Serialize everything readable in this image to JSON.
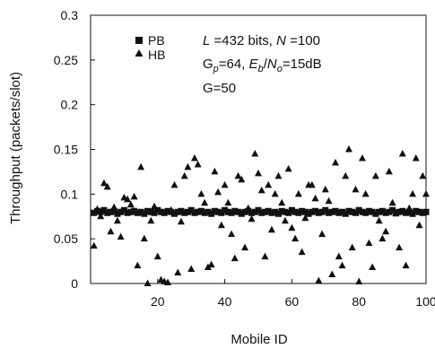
{
  "chart_data": {
    "type": "scatter",
    "xlabel": "Mobile ID",
    "ylabel": "Throughput (packets/slot)",
    "xlim": [
      0,
      100
    ],
    "ylim": [
      0,
      0.3
    ],
    "xticks": [
      "20",
      "40",
      "60",
      "80",
      "100"
    ],
    "yticks": [
      "0",
      "0.05",
      "0.1",
      "0.15",
      "0.2",
      "0.25",
      "0.3"
    ],
    "grid": false,
    "legend_position": "top-left",
    "annotations": {
      "line1": {
        "L": "L",
        "eq1": " =432 bits, ",
        "N": "N",
        "eq2": " =100"
      },
      "line2": {
        "Gp_G": "G",
        "Gp_sub": "p",
        "eq1": "=64, ",
        "E": "E",
        "Eb_sub": "b",
        "slash": "/",
        "N": "N",
        "No_sub": "o",
        "eq2": "=15dB"
      },
      "line3": "G=50"
    },
    "series": [
      {
        "name": "PB",
        "marker": "square",
        "color": "#111111",
        "x": [
          1,
          2,
          3,
          4,
          5,
          6,
          7,
          8,
          9,
          10,
          11,
          12,
          13,
          14,
          15,
          16,
          17,
          18,
          19,
          20,
          21,
          22,
          23,
          24,
          25,
          26,
          27,
          28,
          29,
          30,
          31,
          32,
          33,
          34,
          35,
          36,
          37,
          38,
          39,
          40,
          41,
          42,
          43,
          44,
          45,
          46,
          47,
          48,
          49,
          50,
          51,
          52,
          53,
          54,
          55,
          56,
          57,
          58,
          59,
          60,
          61,
          62,
          63,
          64,
          65,
          66,
          67,
          68,
          69,
          70,
          71,
          72,
          73,
          74,
          75,
          76,
          77,
          78,
          79,
          80,
          81,
          82,
          83,
          84,
          85,
          86,
          87,
          88,
          89,
          90,
          91,
          92,
          93,
          94,
          95,
          96,
          97,
          98,
          99,
          100
        ],
        "y": [
          0.079,
          0.081,
          0.08,
          0.082,
          0.079,
          0.08,
          0.081,
          0.078,
          0.08,
          0.082,
          0.079,
          0.08,
          0.081,
          0.079,
          0.08,
          0.078,
          0.081,
          0.08,
          0.079,
          0.082,
          0.08,
          0.079,
          0.081,
          0.08,
          0.078,
          0.08,
          0.081,
          0.079,
          0.08,
          0.082,
          0.079,
          0.08,
          0.081,
          0.079,
          0.08,
          0.078,
          0.081,
          0.08,
          0.079,
          0.082,
          0.08,
          0.079,
          0.081,
          0.08,
          0.078,
          0.08,
          0.081,
          0.079,
          0.08,
          0.082,
          0.079,
          0.08,
          0.081,
          0.079,
          0.08,
          0.078,
          0.081,
          0.08,
          0.079,
          0.082,
          0.08,
          0.079,
          0.081,
          0.08,
          0.078,
          0.08,
          0.081,
          0.079,
          0.08,
          0.082,
          0.079,
          0.08,
          0.081,
          0.079,
          0.08,
          0.078,
          0.081,
          0.08,
          0.079,
          0.082,
          0.08,
          0.079,
          0.081,
          0.08,
          0.078,
          0.08,
          0.081,
          0.079,
          0.08,
          0.082,
          0.079,
          0.08,
          0.081,
          0.079,
          0.08,
          0.078,
          0.081,
          0.08,
          0.079,
          0.08
        ]
      },
      {
        "name": "HB",
        "marker": "triangle",
        "color": "#111111",
        "x": [
          1,
          2,
          3,
          4,
          5,
          6,
          7,
          8,
          9,
          10,
          11,
          12,
          13,
          14,
          15,
          16,
          17,
          18,
          19,
          20,
          21,
          22,
          23,
          24,
          25,
          26,
          27,
          28,
          29,
          30,
          31,
          32,
          33,
          34,
          35,
          36,
          37,
          38,
          39,
          40,
          41,
          42,
          43,
          44,
          45,
          46,
          47,
          48,
          49,
          50,
          51,
          52,
          53,
          54,
          55,
          56,
          57,
          58,
          59,
          60,
          61,
          62,
          63,
          64,
          65,
          66,
          67,
          68,
          69,
          70,
          71,
          72,
          73,
          74,
          75,
          76,
          77,
          78,
          79,
          80,
          81,
          82,
          83,
          84,
          85,
          86,
          87,
          88,
          89,
          90,
          91,
          92,
          93,
          94,
          95,
          96,
          97,
          98,
          99,
          100
        ],
        "y": [
          0.042,
          0.083,
          0.075,
          0.112,
          0.108,
          0.058,
          0.085,
          0.07,
          0.052,
          0.096,
          0.094,
          0.088,
          0.097,
          0.02,
          0.13,
          0.05,
          0.0,
          0.07,
          0.086,
          0.03,
          0.004,
          0.002,
          0.001,
          0.082,
          0.11,
          0.012,
          0.069,
          0.12,
          0.13,
          0.016,
          0.14,
          0.133,
          0.1,
          0.09,
          0.018,
          0.021,
          0.125,
          0.102,
          0.065,
          0.11,
          0.09,
          0.055,
          0.028,
          0.12,
          0.116,
          0.04,
          0.084,
          0.072,
          0.145,
          0.123,
          0.104,
          0.03,
          0.11,
          0.06,
          0.1,
          0.12,
          0.09,
          0.07,
          0.128,
          0.062,
          0.05,
          0.1,
          0.035,
          0.073,
          0.11,
          0.11,
          0.095,
          0.003,
          0.055,
          0.105,
          0.092,
          0.01,
          0.135,
          0.03,
          0.02,
          0.12,
          0.15,
          0.04,
          0.105,
          0.002,
          0.14,
          0.1,
          0.045,
          0.018,
          0.12,
          0.07,
          0.05,
          0.058,
          0.125,
          0.09,
          0.078,
          0.04,
          0.145,
          0.02,
          0.084,
          0.1,
          0.14,
          0.065,
          0.12,
          0.1
        ]
      }
    ]
  }
}
